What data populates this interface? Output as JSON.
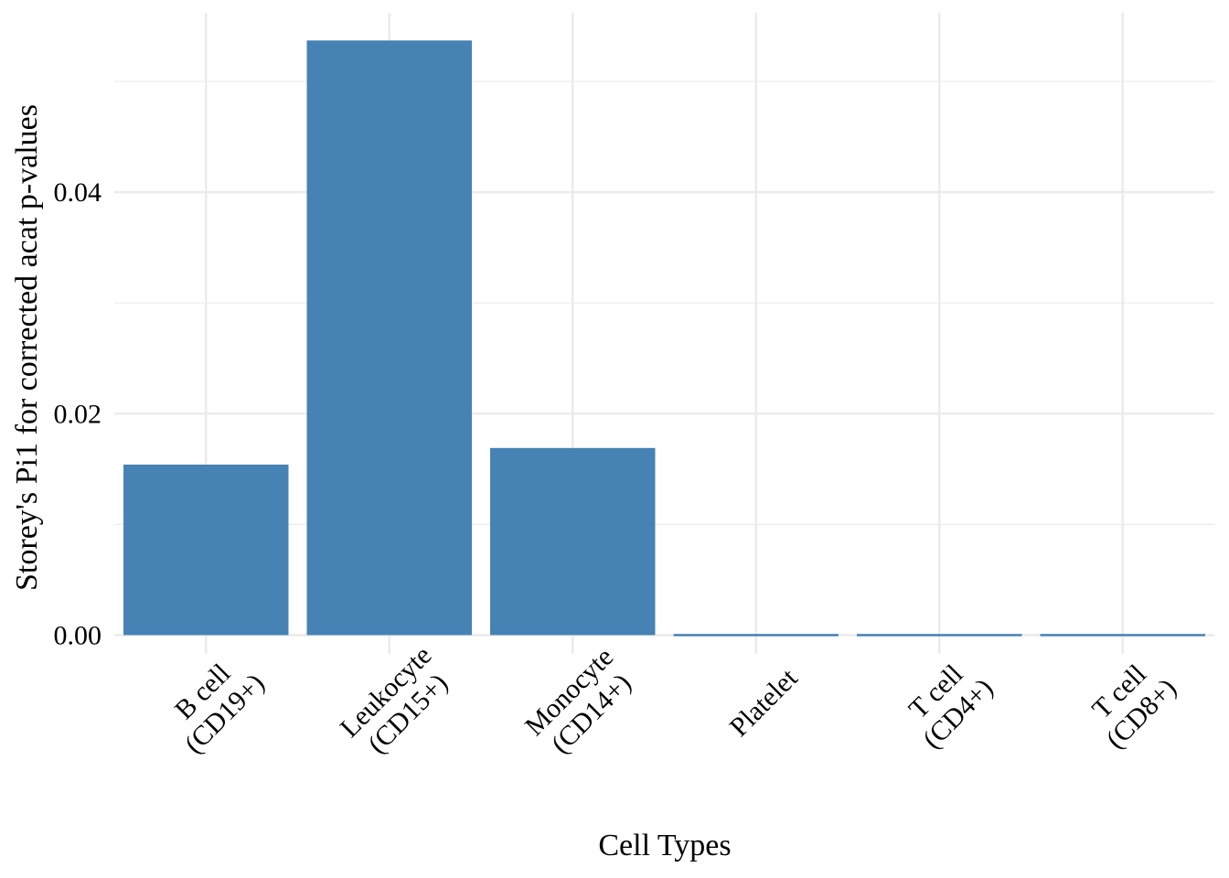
{
  "chart_data": {
    "type": "bar",
    "categories": [
      [
        "B cell",
        "(CD19+)"
      ],
      [
        "Leukocyte",
        "(CD15+)"
      ],
      [
        "Monocyte",
        "(CD14+)"
      ],
      [
        "Platelet"
      ],
      [
        "T cell",
        "(CD4+)"
      ],
      [
        "T cell",
        "(CD8+)"
      ]
    ],
    "values": [
      0.0154,
      0.0537,
      0.0169,
      0.0,
      0.0,
      0.0
    ],
    "xlabel": "Cell Types",
    "ylabel": "Storey's Pi1 for corrected acat p-values",
    "ylim": [
      -0.0017,
      0.0562
    ],
    "yticks": [
      0.0,
      0.02,
      0.04
    ],
    "ytick_labels": [
      "0.00",
      "0.02",
      "0.04"
    ],
    "grid": true,
    "bar_color": "#4682B4",
    "grid_color": "#EBEBEB"
  }
}
